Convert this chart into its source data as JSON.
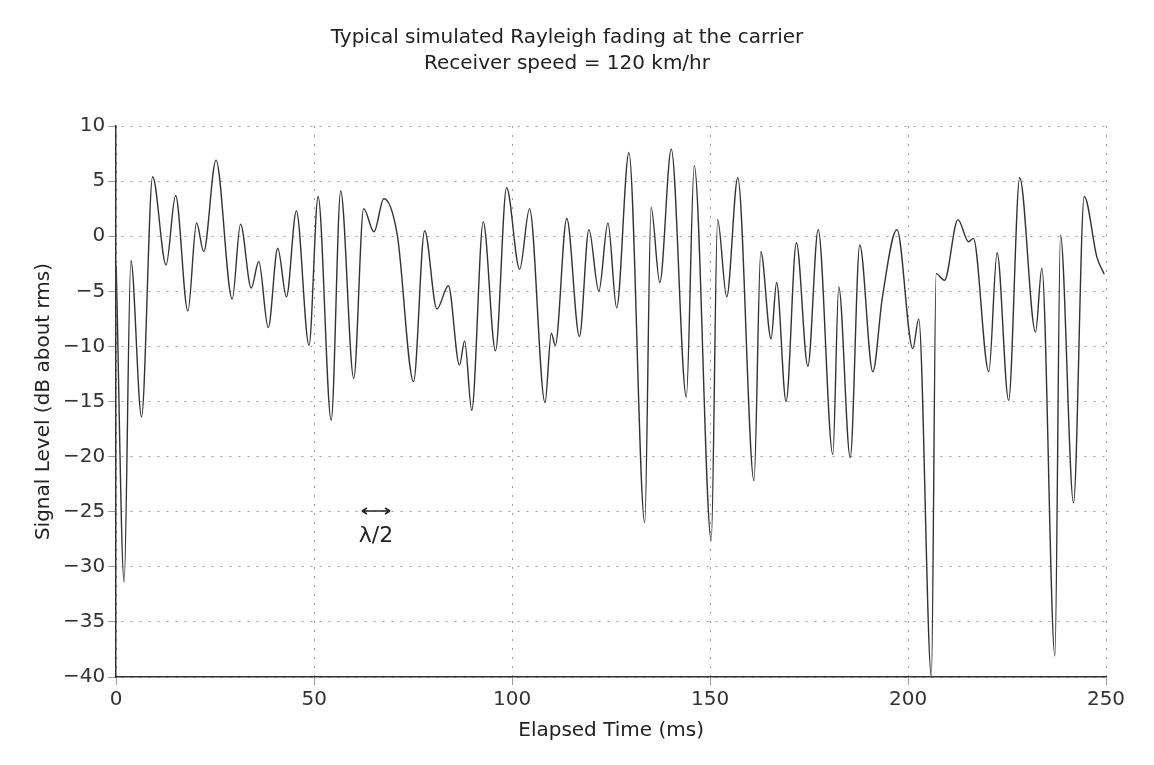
{
  "chart_data": {
    "type": "line",
    "title": "Typical simulated Rayleigh fading at the carrier",
    "subtitle": "Receiver speed = 120 km/hr",
    "xlabel": "Elapsed Time (ms)",
    "ylabel": "Signal Level (dB about rms)",
    "annotations": [
      "λ/2"
    ],
    "xlim": [
      0,
      250
    ],
    "xticks": [
      0,
      50,
      100,
      150,
      200,
      250
    ],
    "ylim": [
      -40,
      10
    ],
    "yticks": [
      -40,
      -35,
      -30,
      -25,
      -20,
      -15,
      -10,
      -5,
      0,
      5,
      10
    ],
    "grid": true,
    "legend": false,
    "marker": "none",
    "line_style": "solid",
    "series": [
      {
        "color": "#333333",
        "x": [
          0,
          2.0,
          3.7,
          6.4,
          9.2,
          12.6,
          15.0,
          18.1,
          20.3,
          22.1,
          25.2,
          29.3,
          31.4,
          34.1,
          36.0,
          38.4,
          40.8,
          43.0,
          45.5,
          48.7,
          51.0,
          54.3,
          56.7,
          60.0,
          62.5,
          65.1,
          67.6,
          71.0,
          75.1,
          77.9,
          81.0,
          83.9,
          86.7,
          88.0,
          89.8,
          92.7,
          95.8,
          98.6,
          101.9,
          104.4,
          108.3,
          109.9,
          110.9,
          113.8,
          117.0,
          119.4,
          121.9,
          124.2,
          126.4,
          129.5,
          133.5,
          135.1,
          137.3,
          140.2,
          144.0,
          146.0,
          150.3,
          151.9,
          154.2,
          157.0,
          161.1,
          162.8,
          165.4,
          166.8,
          169.2,
          171.8,
          174.7,
          177.3,
          181.0,
          182.5,
          185.4,
          187.8,
          191.1,
          193.5,
          197.2,
          201.2,
          202.7,
          205.9,
          207.1,
          209.2,
          212.6,
          215.3,
          216.5,
          220.4,
          222.5,
          225.4,
          228.2,
          232.2,
          233.8,
          237.1,
          238.5,
          241.8,
          244.5,
          247.7,
          249.5
        ],
        "values": [
          -2.7,
          -31.4,
          -2.2,
          -16.4,
          5.4,
          -2.6,
          3.7,
          -6.8,
          1.2,
          -1.4,
          6.9,
          -5.7,
          1.1,
          -4.7,
          -2.3,
          -8.3,
          -1.1,
          -5.5,
          2.3,
          -9.9,
          3.6,
          -16.7,
          4.1,
          -12.9,
          2.5,
          0.4,
          3.4,
          0.1,
          -13.2,
          0.5,
          -6.6,
          -4.5,
          -11.7,
          -9.5,
          -15.8,
          1.3,
          -10.4,
          4.4,
          -3.0,
          2.5,
          -15.1,
          -8.8,
          -9.9,
          1.6,
          -9.1,
          0.6,
          -5.0,
          1.2,
          -6.5,
          7.6,
          -26.0,
          2.6,
          -4.2,
          7.9,
          -14.6,
          6.4,
          -27.6,
          1.5,
          -5.5,
          5.3,
          -22.2,
          -1.4,
          -9.3,
          -4.2,
          -15.0,
          -0.6,
          -11.8,
          0.6,
          -19.8,
          -4.6,
          -20.1,
          -0.8,
          -12.3,
          -5.6,
          0.6,
          -10.2,
          -7.5,
          -40,
          -3.4,
          -4.0,
          1.5,
          -0.5,
          -0.2,
          -12.3,
          -1.5,
          -14.9,
          5.3,
          -8.7,
          -2.9,
          -38.1,
          0.1,
          -24.2,
          3.6,
          -1.9,
          -3.4
        ]
      }
    ]
  }
}
